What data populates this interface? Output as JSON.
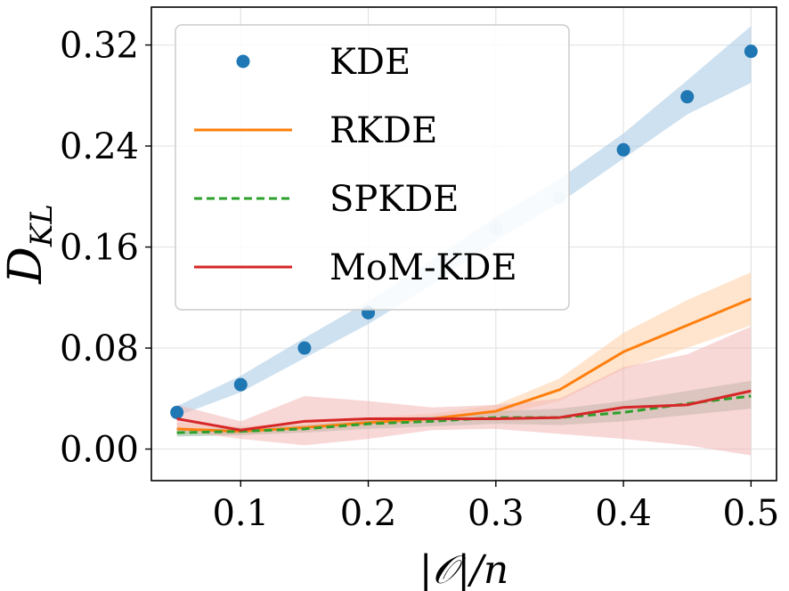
{
  "chart_data": {
    "type": "line",
    "title": "",
    "xlabel": "|𝒪|/n",
    "ylabel": "D",
    "ylabel_sub": "KL",
    "x_ticks": [
      "0.1",
      "0.2",
      "0.3",
      "0.4",
      "0.5"
    ],
    "y_ticks": [
      "0.00",
      "0.08",
      "0.16",
      "0.24",
      "0.32"
    ],
    "x": [
      0.05,
      0.1,
      0.15,
      0.2,
      0.25,
      0.3,
      0.35,
      0.4,
      0.45,
      0.5
    ],
    "xlim": [
      0.03,
      0.52
    ],
    "ylim": [
      -0.025,
      0.35
    ],
    "grid": true,
    "legend_position": "top-left",
    "series": [
      {
        "name": "KDE",
        "style": "scatter",
        "color": "#1f77b4",
        "band_color": "#a6c8e4",
        "values": [
          0.029,
          0.051,
          0.08,
          0.108,
          null,
          0.175,
          0.199,
          0.237,
          0.279,
          0.315
        ],
        "band_low": [
          0.026,
          0.045,
          0.072,
          0.099,
          0.13,
          0.165,
          0.195,
          0.23,
          0.265,
          0.29
        ],
        "band_high": [
          0.034,
          0.058,
          0.088,
          0.117,
          0.15,
          0.184,
          0.214,
          0.25,
          0.292,
          0.335
        ]
      },
      {
        "name": "RKDE",
        "style": "solid",
        "color": "#ff7f0e",
        "band_color": "#ffd0a6",
        "values": [
          0.016,
          0.014,
          0.017,
          0.021,
          0.024,
          0.03,
          0.047,
          0.077,
          0.098,
          0.119
        ],
        "band_low": [
          0.012,
          0.011,
          0.014,
          0.018,
          0.021,
          0.026,
          0.038,
          0.063,
          0.08,
          0.098
        ],
        "band_high": [
          0.021,
          0.018,
          0.021,
          0.025,
          0.028,
          0.035,
          0.056,
          0.092,
          0.118,
          0.14
        ]
      },
      {
        "name": "SPKDE",
        "style": "dashed",
        "color": "#2ca02c",
        "band_color": "#8fb89a",
        "values": [
          0.013,
          0.014,
          0.016,
          0.02,
          0.022,
          0.025,
          0.025,
          0.029,
          0.036,
          0.042
        ],
        "band_low": [
          0.01,
          0.011,
          0.013,
          0.016,
          0.018,
          0.02,
          0.019,
          0.022,
          0.027,
          0.032
        ],
        "band_high": [
          0.016,
          0.017,
          0.019,
          0.023,
          0.026,
          0.03,
          0.032,
          0.038,
          0.046,
          0.054
        ]
      },
      {
        "name": "MoM-KDE",
        "style": "solid",
        "color": "#d62728",
        "band_color": "#f2b6b6",
        "values": [
          0.024,
          0.015,
          0.022,
          0.024,
          0.024,
          0.024,
          0.025,
          0.033,
          0.035,
          0.046
        ],
        "band_low": [
          0.015,
          0.008,
          0.003,
          0.008,
          0.015,
          0.016,
          0.012,
          0.008,
          0.003,
          -0.005
        ],
        "band_high": [
          0.035,
          0.022,
          0.042,
          0.038,
          0.033,
          0.035,
          0.04,
          0.065,
          0.075,
          0.097
        ]
      }
    ]
  }
}
